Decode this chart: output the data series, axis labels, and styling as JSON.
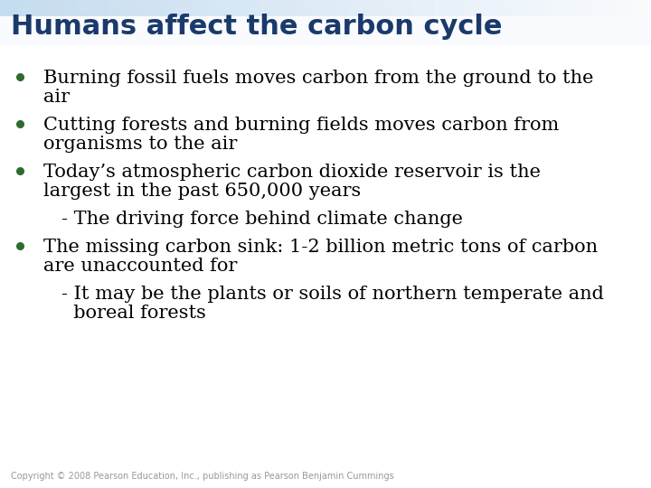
{
  "title": "Humans affect the carbon cycle",
  "title_color": "#1a3a6b",
  "title_fontsize": 22,
  "background_color": "#FFFFFF",
  "bullet_color": "#2E6B2E",
  "text_color": "#000000",
  "copyright_color": "#999999",
  "copyright_text": "Copyright © 2008 Pearson Education, Inc., publishing as Pearson Benjamin Cummings",
  "copyright_fontsize": 7,
  "bullet_fontsize": 15,
  "sub_fontsize": 15,
  "items": [
    {
      "type": "bullet",
      "lines": [
        "Burning fossil fuels moves carbon from the ground to the",
        "air"
      ]
    },
    {
      "type": "bullet",
      "lines": [
        "Cutting forests and burning fields moves carbon from",
        "organisms to the air"
      ]
    },
    {
      "type": "bullet",
      "lines": [
        "Today’s atmospheric carbon dioxide reservoir is the",
        "largest in the past 650,000 years"
      ]
    },
    {
      "type": "sub",
      "lines": [
        "- The driving force behind climate change"
      ]
    },
    {
      "type": "bullet",
      "lines": [
        "The missing carbon sink: 1-2 billion metric tons of carbon",
        "are unaccounted for"
      ]
    },
    {
      "type": "sub",
      "lines": [
        "- It may be the plants or soils of northern temperate and",
        "  boreal forests"
      ]
    }
  ]
}
